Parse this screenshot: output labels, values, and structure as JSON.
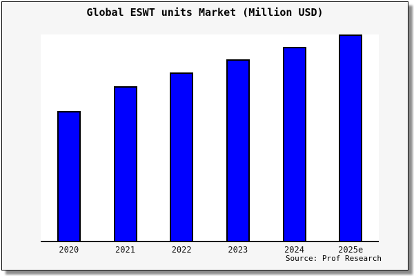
{
  "figure": {
    "title": "Global ESWT units Market (Million USD)",
    "source": "Source: Prof Research"
  },
  "chart_data": {
    "type": "bar",
    "title": "Global ESWT units Market (Million USD)",
    "categories": [
      "2020",
      "2021",
      "2022",
      "2023",
      "2024",
      "2025e"
    ],
    "values": [
      63,
      75,
      81.5,
      88,
      94,
      100
    ],
    "values_note": "y-axis has no tick labels; values are relative bar heights with the tallest bar (2025e) = 100",
    "xlabel": "",
    "ylabel": "",
    "ylim": [
      0,
      100
    ],
    "grid": false,
    "legend": false,
    "bar_color": "#0000ff",
    "bar_border_color": "#000000",
    "source": "Source: Prof Research"
  },
  "colors": {
    "figure_background": "#f6f6f6",
    "plot_background": "#ffffff",
    "axis_line": "#000000",
    "title_text": "#000000"
  }
}
